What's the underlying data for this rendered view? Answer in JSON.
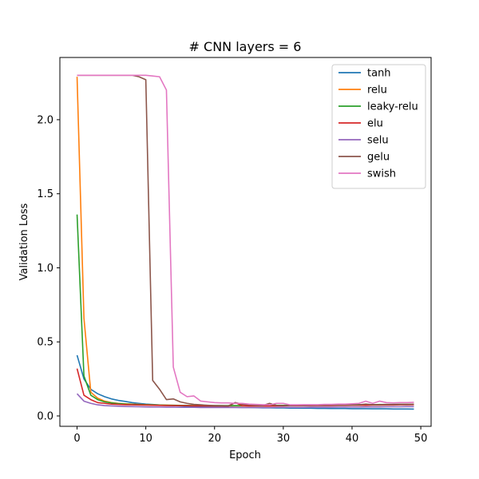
{
  "chart_data": {
    "type": "line",
    "title": "# CNN layers = 6",
    "xlabel": "Epoch",
    "ylabel": "Validation Loss",
    "xlim": [
      -2.5,
      51.5
    ],
    "ylim": [
      -0.07,
      2.42
    ],
    "xticks": [
      0,
      10,
      20,
      30,
      40,
      50
    ],
    "yticks": [
      0.0,
      0.5,
      1.0,
      1.5,
      2.0
    ],
    "ytick_labels": [
      "0.0",
      "0.5",
      "1.0",
      "1.5",
      "2.0"
    ],
    "legend_position": "top-right",
    "grid": false,
    "x": [
      0,
      1,
      2,
      3,
      4,
      5,
      6,
      7,
      8,
      9,
      10,
      11,
      12,
      13,
      14,
      15,
      16,
      17,
      18,
      19,
      20,
      21,
      22,
      23,
      24,
      25,
      26,
      27,
      28,
      29,
      30,
      31,
      32,
      33,
      34,
      35,
      36,
      37,
      38,
      39,
      40,
      41,
      42,
      43,
      44,
      45,
      46,
      47,
      48,
      49
    ],
    "series": [
      {
        "name": "tanh",
        "color": "#1f77b4",
        "values": [
          0.41,
          0.25,
          0.18,
          0.15,
          0.13,
          0.115,
          0.105,
          0.098,
          0.09,
          0.085,
          0.08,
          0.077,
          0.074,
          0.072,
          0.07,
          0.068,
          0.066,
          0.064,
          0.063,
          0.062,
          0.061,
          0.06,
          0.059,
          0.058,
          0.057,
          0.057,
          0.056,
          0.055,
          0.055,
          0.054,
          0.054,
          0.053,
          0.053,
          0.052,
          0.052,
          0.051,
          0.051,
          0.05,
          0.05,
          0.05,
          0.049,
          0.049,
          0.049,
          0.048,
          0.048,
          0.048,
          0.047,
          0.047,
          0.047,
          0.046
        ]
      },
      {
        "name": "relu",
        "color": "#ff7f0e",
        "values": [
          2.29,
          0.66,
          0.16,
          0.12,
          0.1,
          0.09,
          0.085,
          0.082,
          0.08,
          0.078,
          0.076,
          0.075,
          0.074,
          0.073,
          0.072,
          0.071,
          0.07,
          0.07,
          0.069,
          0.069,
          0.068,
          0.068,
          0.068,
          0.068,
          0.068,
          0.068,
          0.068,
          0.068,
          0.068,
          0.069,
          0.069,
          0.069,
          0.07,
          0.07,
          0.07,
          0.071,
          0.071,
          0.072,
          0.072,
          0.073,
          0.073,
          0.074,
          0.074,
          0.075,
          0.075,
          0.076,
          0.076,
          0.077,
          0.077,
          0.078
        ]
      },
      {
        "name": "leaky-relu",
        "color": "#2ca02c",
        "values": [
          1.36,
          0.27,
          0.14,
          0.11,
          0.095,
          0.088,
          0.083,
          0.08,
          0.078,
          0.076,
          0.075,
          0.074,
          0.073,
          0.072,
          0.072,
          0.071,
          0.071,
          0.07,
          0.07,
          0.07,
          0.07,
          0.07,
          0.07,
          0.07,
          0.07,
          0.07,
          0.071,
          0.071,
          0.071,
          0.072,
          0.072,
          0.072,
          0.073,
          0.073,
          0.073,
          0.074,
          0.074,
          0.074,
          0.075,
          0.075,
          0.075,
          0.076,
          0.076,
          0.076,
          0.077,
          0.077,
          0.077,
          0.078,
          0.078,
          0.078
        ]
      },
      {
        "name": "elu",
        "color": "#d62728",
        "values": [
          0.32,
          0.14,
          0.11,
          0.09,
          0.085,
          0.08,
          0.078,
          0.076,
          0.075,
          0.074,
          0.073,
          0.072,
          0.071,
          0.07,
          0.07,
          0.069,
          0.069,
          0.068,
          0.068,
          0.067,
          0.067,
          0.067,
          0.066,
          0.09,
          0.07,
          0.068,
          0.068,
          0.068,
          0.068,
          0.068,
          0.068,
          0.069,
          0.069,
          0.069,
          0.07,
          0.07,
          0.07,
          0.07,
          0.071,
          0.071,
          0.072,
          0.072,
          0.072,
          0.073,
          0.073,
          0.074,
          0.074,
          0.075,
          0.075,
          0.076
        ]
      },
      {
        "name": "selu",
        "color": "#9467bd",
        "values": [
          0.15,
          0.1,
          0.085,
          0.075,
          0.07,
          0.068,
          0.066,
          0.064,
          0.063,
          0.062,
          0.061,
          0.06,
          0.06,
          0.059,
          0.059,
          0.058,
          0.058,
          0.058,
          0.057,
          0.057,
          0.057,
          0.057,
          0.057,
          0.057,
          0.057,
          0.057,
          0.057,
          0.057,
          0.057,
          0.058,
          0.058,
          0.058,
          0.058,
          0.058,
          0.059,
          0.059,
          0.059,
          0.059,
          0.06,
          0.06,
          0.06,
          0.06,
          0.061,
          0.061,
          0.061,
          0.062,
          0.062,
          0.062,
          0.063,
          0.063
        ]
      },
      {
        "name": "gelu",
        "color": "#8c564b",
        "values": [
          2.3,
          2.3,
          2.3,
          2.3,
          2.3,
          2.3,
          2.3,
          2.3,
          2.3,
          2.29,
          2.27,
          0.24,
          0.18,
          0.11,
          0.115,
          0.095,
          0.085,
          0.078,
          0.075,
          0.072,
          0.07,
          0.069,
          0.068,
          0.09,
          0.08,
          0.075,
          0.072,
          0.07,
          0.085,
          0.072,
          0.07,
          0.07,
          0.072,
          0.07,
          0.071,
          0.072,
          0.072,
          0.073,
          0.073,
          0.074,
          0.074,
          0.075,
          0.08,
          0.076,
          0.076,
          0.077,
          0.077,
          0.078,
          0.078,
          0.079
        ]
      },
      {
        "name": "swish",
        "color": "#e377c2",
        "values": [
          2.3,
          2.3,
          2.3,
          2.3,
          2.3,
          2.3,
          2.3,
          2.3,
          2.3,
          2.3,
          2.3,
          2.295,
          2.29,
          2.2,
          0.33,
          0.16,
          0.13,
          0.135,
          0.1,
          0.095,
          0.09,
          0.088,
          0.088,
          0.085,
          0.085,
          0.08,
          0.078,
          0.076,
          0.075,
          0.085,
          0.085,
          0.075,
          0.075,
          0.076,
          0.076,
          0.076,
          0.078,
          0.078,
          0.08,
          0.08,
          0.082,
          0.085,
          0.1,
          0.085,
          0.1,
          0.09,
          0.088,
          0.09,
          0.09,
          0.092
        ]
      }
    ]
  }
}
